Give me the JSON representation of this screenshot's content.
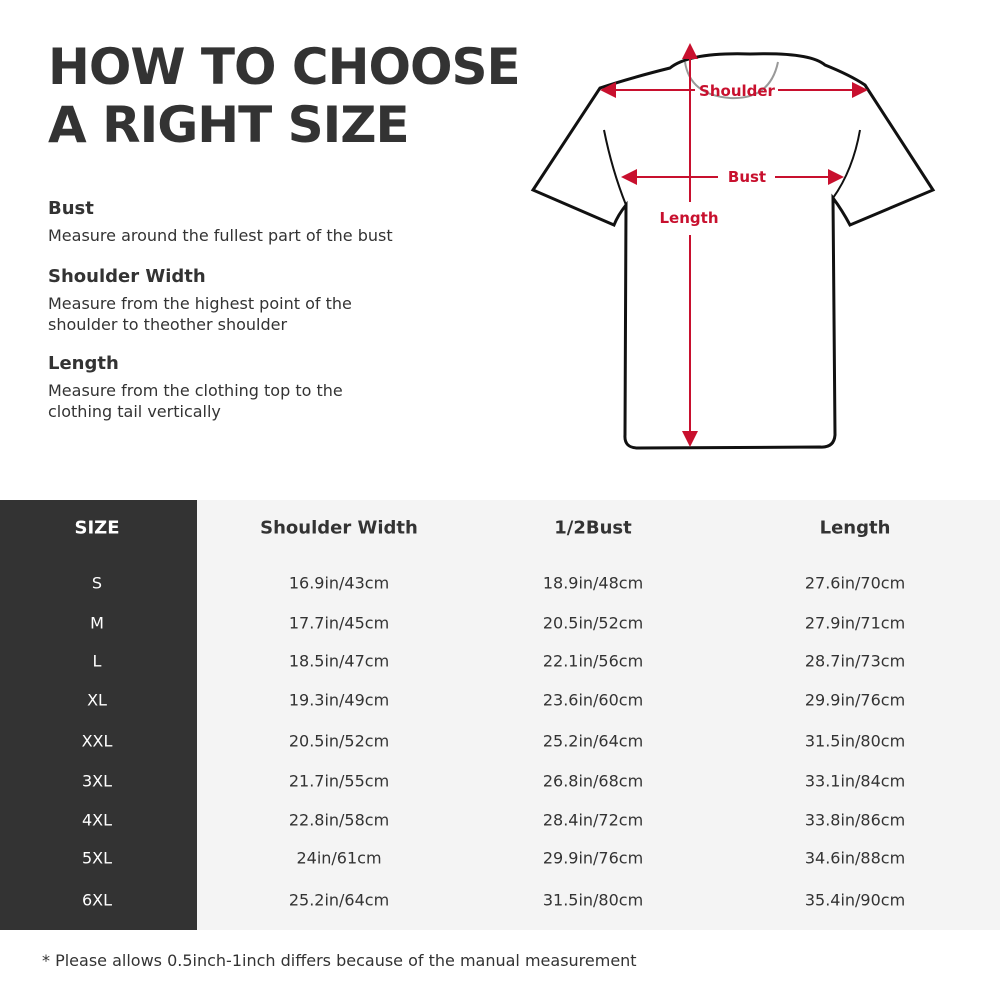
{
  "title": [
    "HOW TO CHOOSE",
    "A RIGHT SIZE"
  ],
  "definitions": [
    {
      "term": "Bust",
      "desc": [
        "Measure around the fullest part of the bust"
      ]
    },
    {
      "term": "Shoulder Width",
      "desc": [
        "Measure from the highest point of the",
        "shoulder to theother shoulder"
      ]
    },
    {
      "term": "Length",
      "desc": [
        "Measure from the clothing top to the",
        "clothing tail vertically"
      ]
    }
  ],
  "diagram": {
    "labels": {
      "shoulder": "Shoulder",
      "bust": "Bust",
      "length": "Length"
    },
    "arrow_color": "#c8102e"
  },
  "table": {
    "headers": [
      "SIZE",
      "Shoulder Width",
      "1/2Bust",
      "Length"
    ],
    "rows": [
      [
        "S",
        "16.9in/43cm",
        "18.9in/48cm",
        "27.6in/70cm"
      ],
      [
        "M",
        "17.7in/45cm",
        "20.5in/52cm",
        "27.9in/71cm"
      ],
      [
        "L",
        "18.5in/47cm",
        "22.1in/56cm",
        "28.7in/73cm"
      ],
      [
        "XL",
        "19.3in/49cm",
        "23.6in/60cm",
        "29.9in/76cm"
      ],
      [
        "XXL",
        "20.5in/52cm",
        "25.2in/64cm",
        "31.5in/80cm"
      ],
      [
        "3XL",
        "21.7in/55cm",
        "26.8in/68cm",
        "33.1in/84cm"
      ],
      [
        "4XL",
        "22.8in/58cm",
        "28.4in/72cm",
        "33.8in/86cm"
      ],
      [
        "5XL",
        "24in/61cm",
        "29.9in/76cm",
        "34.6in/88cm"
      ],
      [
        "6XL",
        "25.2in/64cm",
        "31.5in/80cm",
        "35.4in/90cm"
      ]
    ]
  },
  "note": "* Please allows 0.5inch-1inch differs because of the  manual measurement"
}
